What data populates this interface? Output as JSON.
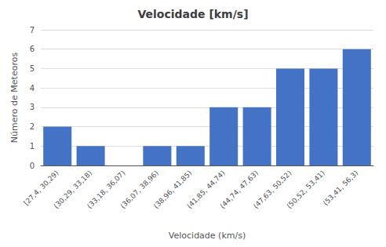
{
  "chart_data": {
    "type": "bar",
    "title": "Velocidade [km/s]",
    "xlabel": "Velocidade (km/s)",
    "ylabel": "Número de Meteoros",
    "categories": [
      "[27,4, 30,29)",
      "(30,29, 33,18)",
      "(33,18, 36,07)",
      "(36,07, 38,96)",
      "(38,96, 41,85)",
      "(41,85, 44,74)",
      "(44,74, 47,63)",
      "(47,63, 50,52)",
      "(50,52, 53,41)",
      "(53,41, 56,3)"
    ],
    "values": [
      2,
      1,
      0,
      1,
      1,
      3,
      3,
      5,
      5,
      6
    ],
    "color": "#4472C4",
    "ylim": [
      0,
      7
    ],
    "yticks": [
      0,
      1,
      2,
      3,
      4,
      5,
      6,
      7
    ],
    "grid": true
  }
}
